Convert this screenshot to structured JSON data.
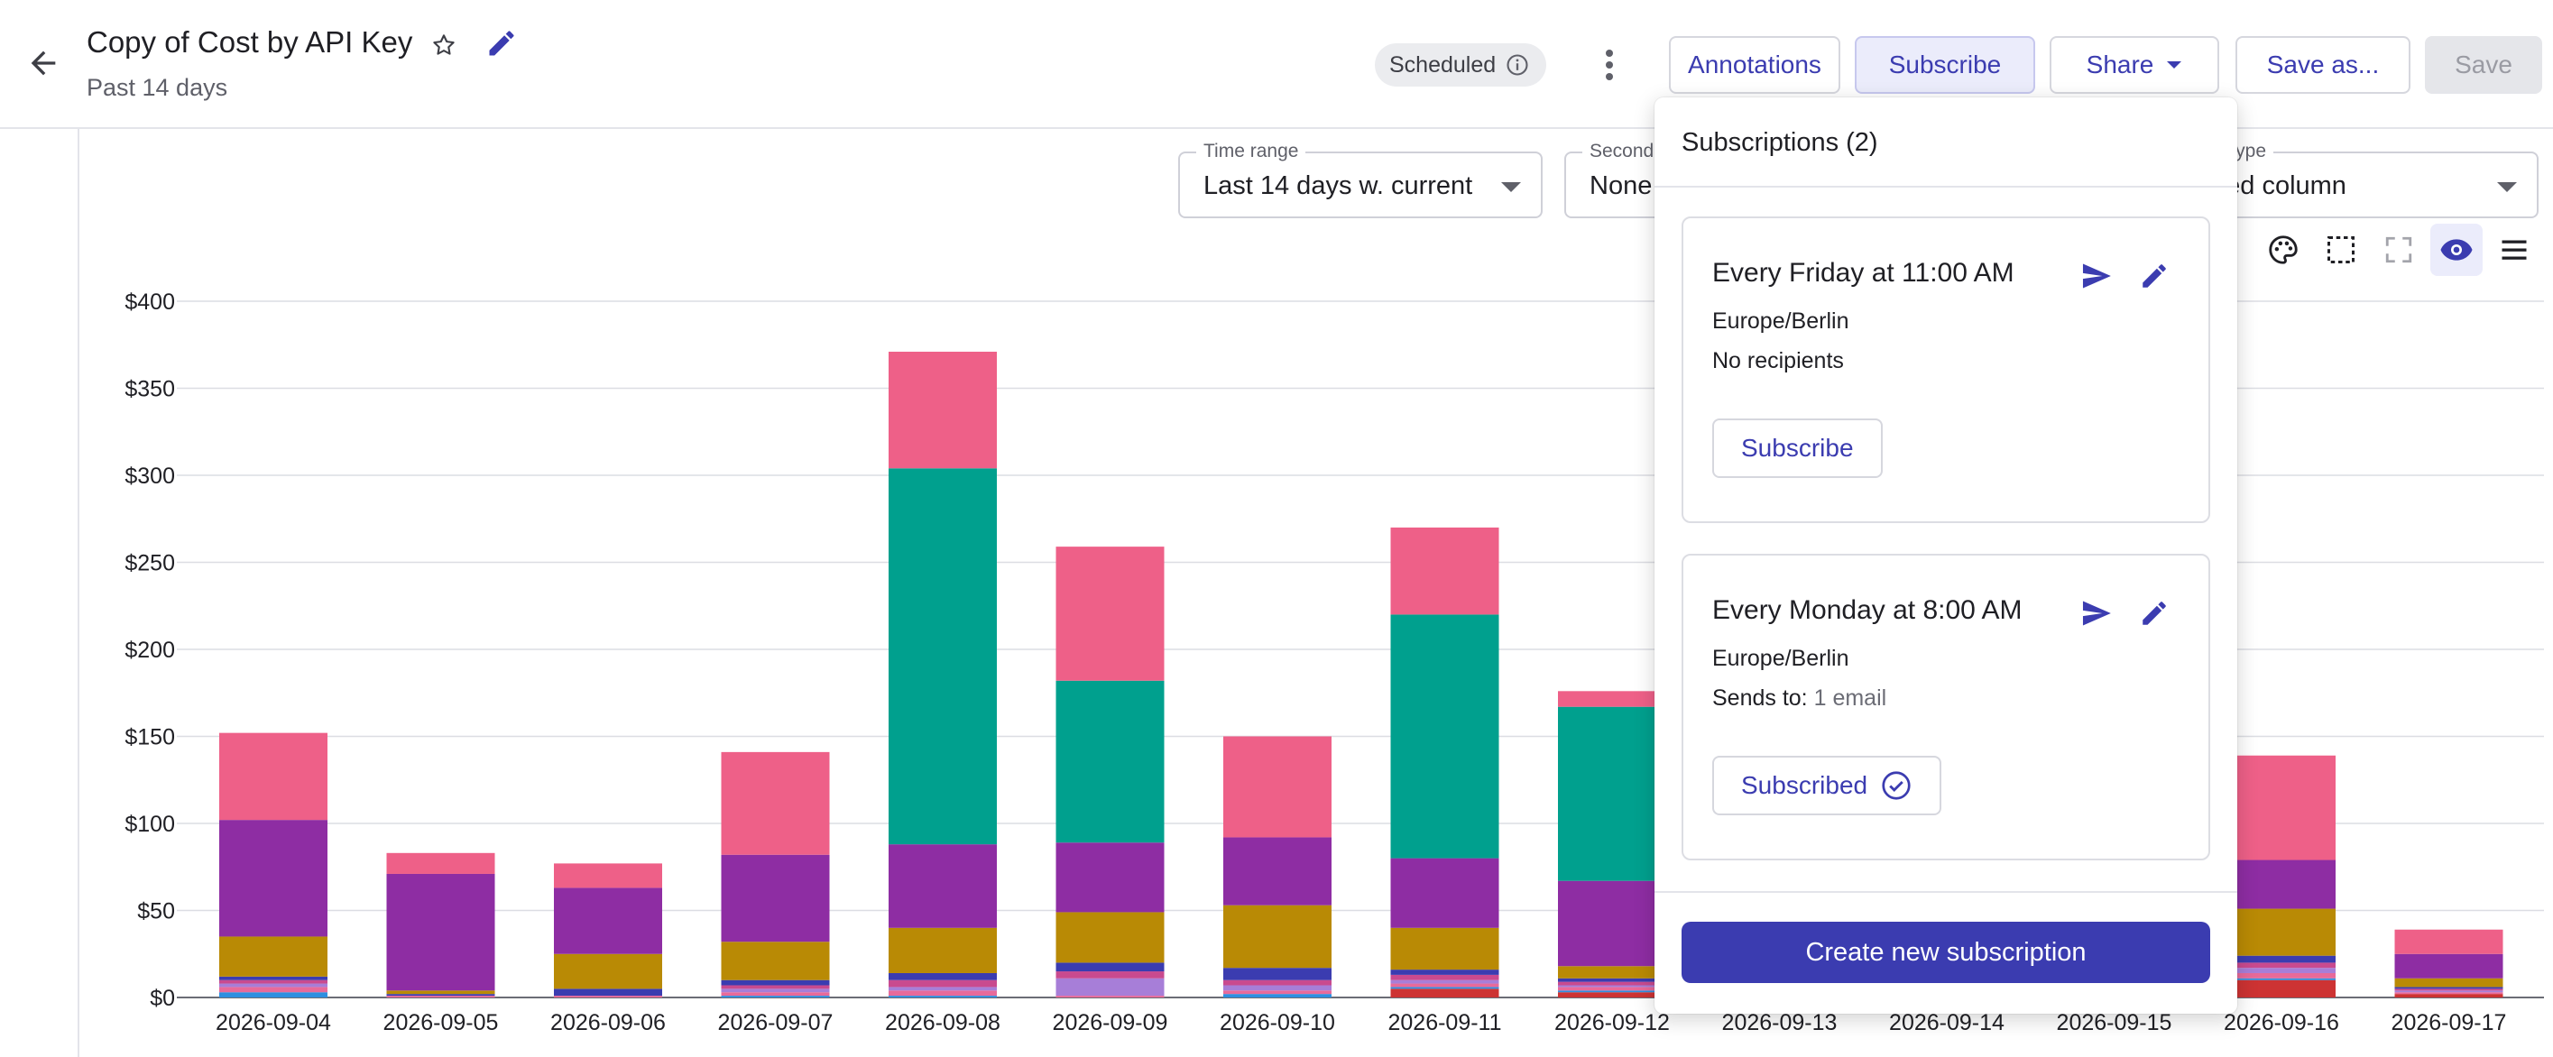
{
  "header": {
    "title": "Copy of Cost by API Key",
    "subtitle": "Past 14 days",
    "status_badge": "Scheduled",
    "buttons": {
      "annotations": "Annotations",
      "subscribe": "Subscribe",
      "share": "Share",
      "save_as": "Save as...",
      "save": "Save"
    }
  },
  "controls": {
    "time_range": {
      "label": "Time range",
      "value": "Last 14 days w. current"
    },
    "second": {
      "label": "Second",
      "value": "None"
    },
    "chart_type": {
      "label": "art type",
      "value": "acked column"
    }
  },
  "colors": {
    "accent": "#3b3cb0",
    "accent_light": "#ebecfb",
    "series": [
      "#2e8fe0",
      "#e86a9a",
      "#a77ed8",
      "#c94a8f",
      "#3b3cb0",
      "#b98a05",
      "#8e2da3",
      "#00a08e",
      "#ee6088",
      "#cd3333"
    ]
  },
  "chart_data": {
    "type": "bar",
    "stacked": true,
    "categories": [
      "2026-09-04",
      "2026-09-05",
      "2026-09-06",
      "2026-09-07",
      "2026-09-08",
      "2026-09-09",
      "2026-09-10",
      "2026-09-11",
      "2026-09-12",
      "2026-09-13",
      "2026-09-14",
      "2026-09-15",
      "2026-09-16",
      "2026-09-17"
    ],
    "y_ticks": [
      "$0",
      "$50",
      "$100",
      "$150",
      "$200",
      "$250",
      "$300",
      "$350",
      "$400"
    ],
    "ylim": [
      0,
      400
    ],
    "grid": true,
    "series": [
      {
        "color": "#cd3333",
        "values": [
          0,
          0,
          0,
          0,
          0,
          0,
          0,
          5,
          3,
          null,
          null,
          null,
          10,
          2
        ]
      },
      {
        "color": "#2e8fe0",
        "values": [
          3,
          0,
          0,
          1,
          1,
          0,
          2,
          1,
          1,
          null,
          null,
          null,
          1,
          0
        ]
      },
      {
        "color": "#e86a9a",
        "values": [
          3,
          1,
          1,
          2,
          3,
          1,
          2,
          2,
          2,
          null,
          null,
          null,
          3,
          1
        ]
      },
      {
        "color": "#a77ed8",
        "values": [
          2,
          0,
          0,
          2,
          2,
          10,
          3,
          2,
          1,
          null,
          null,
          null,
          3,
          1
        ]
      },
      {
        "color": "#c94a8f",
        "values": [
          2,
          0,
          0,
          2,
          4,
          4,
          3,
          3,
          2,
          null,
          null,
          null,
          3,
          1
        ]
      },
      {
        "color": "#3b3cb0",
        "values": [
          2,
          1,
          4,
          3,
          4,
          5,
          7,
          3,
          2,
          null,
          null,
          null,
          4,
          1
        ]
      },
      {
        "color": "#b98a05",
        "values": [
          23,
          2,
          20,
          22,
          26,
          29,
          36,
          24,
          7,
          null,
          null,
          null,
          27,
          5
        ]
      },
      {
        "color": "#8e2da3",
        "values": [
          67,
          67,
          38,
          50,
          48,
          40,
          39,
          40,
          49,
          null,
          null,
          null,
          28,
          14
        ]
      },
      {
        "color": "#00a08e",
        "values": [
          0,
          0,
          0,
          0,
          216,
          93,
          0,
          140,
          100,
          null,
          null,
          null,
          0,
          0
        ]
      },
      {
        "color": "#ee6088",
        "values": [
          50,
          12,
          14,
          59,
          67,
          77,
          58,
          50,
          9,
          null,
          null,
          null,
          60,
          14
        ]
      }
    ]
  },
  "popover": {
    "title": "Subscriptions (2)",
    "subscriptions": [
      {
        "title": "Every Friday at 11:00 AM",
        "timezone": "Europe/Berlin",
        "recipients_label": "No recipients",
        "recipients_value": "",
        "button": "Subscribe"
      },
      {
        "title": "Every Monday at 8:00 AM",
        "timezone": "Europe/Berlin",
        "recipients_label": "Sends to:",
        "recipients_value": "1 email",
        "button": "Subscribed"
      }
    ],
    "create_button": "Create new subscription"
  }
}
